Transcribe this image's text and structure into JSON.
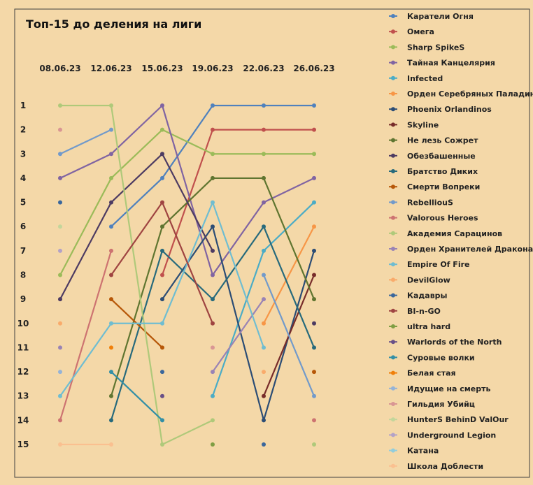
{
  "chart_data": {
    "type": "line",
    "title": "Топ-15 до деления на лиги",
    "categories": [
      "08.06.23",
      "12.06.23",
      "15.06.23",
      "19.06.23",
      "22.06.23",
      "26.06.23"
    ],
    "y_ticks": [
      "1",
      "2",
      "3",
      "4",
      "5",
      "6",
      "7",
      "8",
      "9",
      "10",
      "11",
      "12",
      "13",
      "14",
      "15"
    ],
    "ylim": [
      1,
      15
    ],
    "y_inverted": true,
    "legend_position": "right",
    "series": [
      {
        "name": "Каратели Огня",
        "color": "#4f81bd",
        "values": [
          null,
          6,
          4,
          1,
          1,
          1
        ]
      },
      {
        "name": "Омега",
        "color": "#c0504d",
        "values": [
          null,
          null,
          8,
          2,
          2,
          2
        ]
      },
      {
        "name": "Sharp SpikeS",
        "color": "#9bbb59",
        "values": [
          8,
          4,
          2,
          3,
          3,
          3
        ]
      },
      {
        "name": "Тайная Канцелярия",
        "color": "#8064a2",
        "values": [
          4,
          3,
          1,
          8,
          5,
          4
        ]
      },
      {
        "name": "Infected",
        "color": "#4bacc6",
        "values": [
          null,
          null,
          null,
          13,
          7,
          5
        ]
      },
      {
        "name": "Орден Серебряных Паладинов",
        "color": "#f79646",
        "values": [
          null,
          null,
          null,
          null,
          10,
          6
        ]
      },
      {
        "name": "Phoenix Orlandinos",
        "color": "#2c4d75",
        "values": [
          null,
          null,
          9,
          6,
          14,
          7
        ]
      },
      {
        "name": "Skyline",
        "color": "#772c2a",
        "values": [
          null,
          null,
          null,
          null,
          13,
          8
        ]
      },
      {
        "name": "Не лезь Сожрет",
        "color": "#5f7530",
        "values": [
          null,
          13,
          6,
          4,
          4,
          9
        ]
      },
      {
        "name": "Обезбашенные",
        "color": "#4d3b62",
        "values": [
          9,
          5,
          3,
          7,
          null,
          10
        ]
      },
      {
        "name": "Братство Диких",
        "color": "#276a7c",
        "values": [
          null,
          14,
          7,
          9,
          6,
          11
        ]
      },
      {
        "name": "Смерти Вопреки",
        "color": "#b65708",
        "values": [
          null,
          9,
          11,
          null,
          null,
          12
        ]
      },
      {
        "name": "RebelliouS",
        "color": "#729aca",
        "values": [
          3,
          2,
          null,
          null,
          8,
          13
        ]
      },
      {
        "name": "Valorous Heroes",
        "color": "#cd7371",
        "values": [
          14,
          7,
          null,
          null,
          null,
          14
        ]
      },
      {
        "name": "Академия Сарацинов",
        "color": "#afc97a",
        "values": [
          1,
          1,
          15,
          14,
          null,
          15
        ]
      },
      {
        "name": "Орден Хранителей Дракона",
        "color": "#9983b5",
        "values": [
          11,
          null,
          null,
          12,
          9,
          null
        ]
      },
      {
        "name": "Empire Of Fire",
        "color": "#6fbdd1",
        "values": [
          13,
          10,
          10,
          5,
          11,
          null
        ]
      },
      {
        "name": "DevilGlow",
        "color": "#f9ab6b",
        "values": [
          10,
          null,
          null,
          null,
          12,
          null
        ]
      },
      {
        "name": "Кадавры",
        "color": "#3a679c",
        "values": [
          5,
          null,
          12,
          null,
          15,
          null
        ]
      },
      {
        "name": "BI-n-GO",
        "color": "#9f4441",
        "values": [
          null,
          8,
          5,
          10,
          null,
          null
        ]
      },
      {
        "name": "ultra hard",
        "color": "#7f9e43",
        "values": [
          null,
          null,
          null,
          15,
          null,
          null
        ]
      },
      {
        "name": "Warlords of the North",
        "color": "#695087",
        "values": [
          null,
          null,
          13,
          null,
          null,
          null
        ]
      },
      {
        "name": "Суровые волки",
        "color": "#328fa6",
        "values": [
          null,
          12,
          14,
          null,
          null,
          null
        ]
      },
      {
        "name": "Белая стая",
        "color": "#f07f09",
        "values": [
          null,
          11,
          null,
          null,
          null,
          null
        ]
      },
      {
        "name": "Идущие на смерть",
        "color": "#95b3d7",
        "values": [
          12,
          null,
          null,
          null,
          null,
          null
        ]
      },
      {
        "name": "Гильдия Убийц",
        "color": "#d99694",
        "values": [
          2,
          null,
          null,
          11,
          null,
          null
        ]
      },
      {
        "name": "HunterS BehinD ValOur",
        "color": "#c3d69b",
        "values": [
          6,
          null,
          null,
          null,
          null,
          null
        ]
      },
      {
        "name": "Underground Legion",
        "color": "#b3a2c7",
        "values": [
          7,
          null,
          null,
          null,
          null,
          null
        ]
      },
      {
        "name": "Катана",
        "color": "#92cddc",
        "values": [
          null,
          null,
          null,
          null,
          null,
          null
        ]
      },
      {
        "name": "Школа Доблести",
        "color": "#fac090",
        "values": [
          15,
          15,
          null,
          null,
          null,
          null
        ]
      }
    ]
  }
}
